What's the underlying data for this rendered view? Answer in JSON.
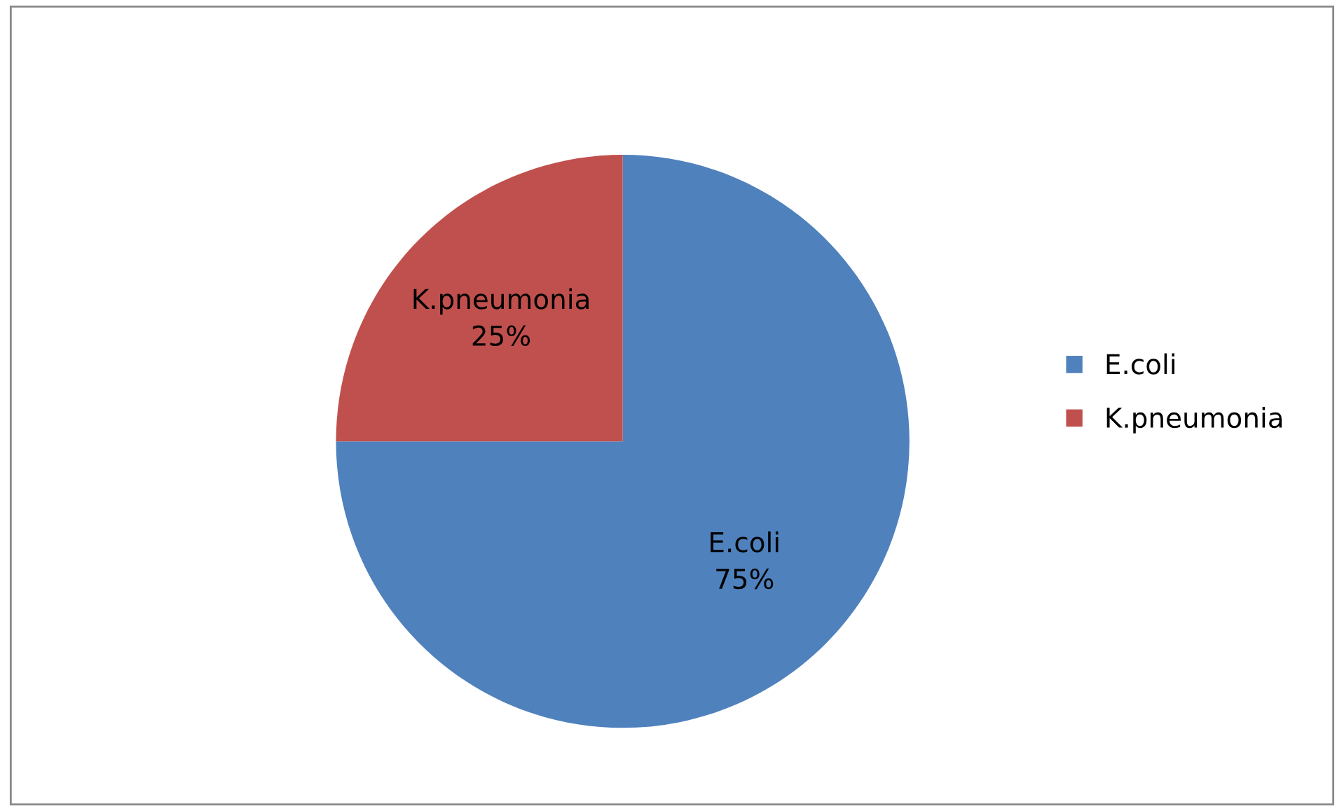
{
  "chart_data": {
    "type": "pie",
    "categories": [
      "E.coli",
      "K.pneumonia"
    ],
    "values": [
      75,
      25
    ],
    "colors": [
      "#4f81bd",
      "#c0504d"
    ],
    "value_labels": [
      "75%",
      "25%"
    ],
    "legend": "right"
  }
}
